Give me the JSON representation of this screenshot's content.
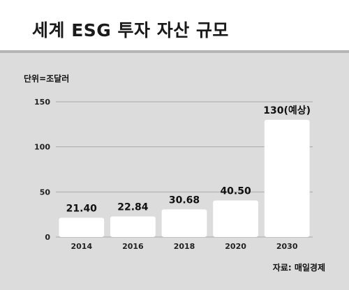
{
  "header": {
    "title": "세계 ESG 투자 자산 규모"
  },
  "unit_note": "단위=조달러",
  "source_note": "자료: 매일경제",
  "colors": {
    "background": "#dcdcdc",
    "bar": "#ffffff",
    "grid": "#a8a8a8",
    "divider": "#b5b5b5"
  },
  "chart_data": {
    "type": "bar",
    "title": "세계 ESG 투자 자산 규모",
    "xlabel": "",
    "ylabel": "",
    "categories": [
      "2014",
      "2016",
      "2018",
      "2020",
      "2030"
    ],
    "values": [
      21.4,
      22.84,
      30.68,
      40.5,
      130
    ],
    "data_labels": [
      "21.40",
      "22.84",
      "30.68",
      "40.50",
      "130(예상)"
    ],
    "ylim": [
      0,
      150
    ],
    "yticks": [
      0,
      50,
      100,
      150
    ],
    "grid": true,
    "legend": "none"
  }
}
